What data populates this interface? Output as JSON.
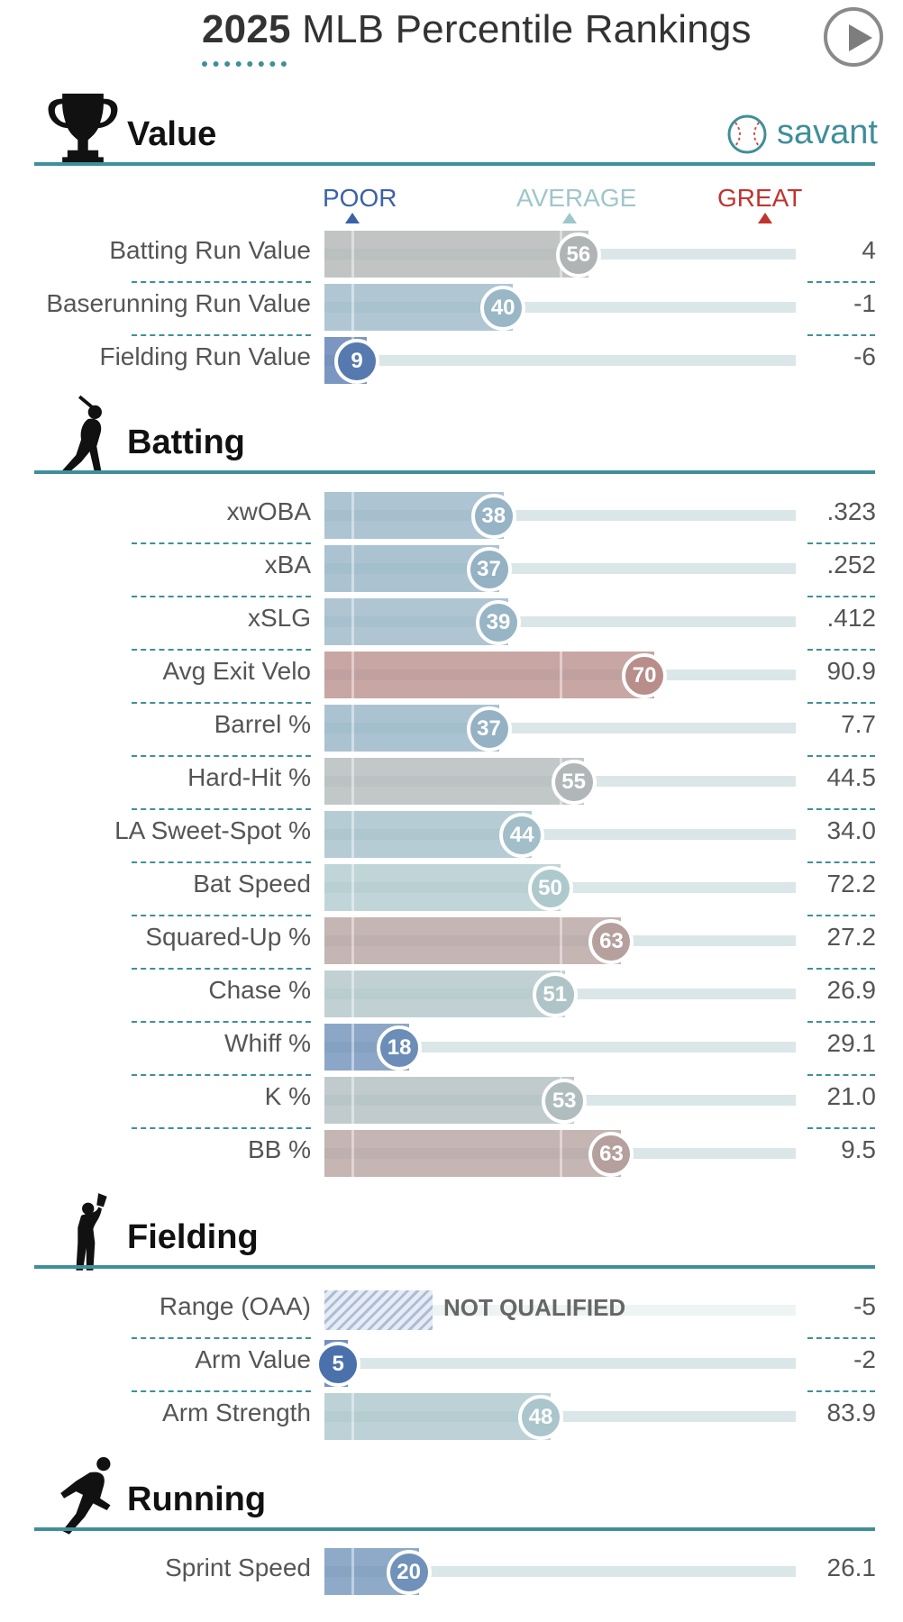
{
  "header": {
    "title_year": "2025",
    "title_rest": "MLB Percentile Rankings",
    "play_icon": "play-icon"
  },
  "brand": {
    "name": "savant",
    "icon": "baseball-icon",
    "color": "#3f8f9a"
  },
  "scale": {
    "poor": "POOR",
    "average": "AVERAGE",
    "great": "GREAT"
  },
  "chart_data": {
    "type": "bar",
    "title": "2025 MLB Percentile Rankings",
    "xlim": [
      0,
      100
    ],
    "value_label": "percentile",
    "sections": [
      {
        "name": "Value",
        "icon": "trophy-icon",
        "metrics": [
          {
            "name": "Batting Run Value",
            "percentile": 56,
            "stat": "4"
          },
          {
            "name": "Baserunning Run Value",
            "percentile": 40,
            "stat": "-1"
          },
          {
            "name": "Fielding Run Value",
            "percentile": 9,
            "stat": "-6"
          }
        ]
      },
      {
        "name": "Batting",
        "icon": "batter-icon",
        "metrics": [
          {
            "name": "xwOBA",
            "percentile": 38,
            "stat": ".323"
          },
          {
            "name": "xBA",
            "percentile": 37,
            "stat": ".252"
          },
          {
            "name": "xSLG",
            "percentile": 39,
            "stat": ".412"
          },
          {
            "name": "Avg Exit Velo",
            "percentile": 70,
            "stat": "90.9"
          },
          {
            "name": "Barrel %",
            "percentile": 37,
            "stat": "7.7"
          },
          {
            "name": "Hard-Hit %",
            "percentile": 55,
            "stat": "44.5"
          },
          {
            "name": "LA Sweet-Spot %",
            "percentile": 44,
            "stat": "34.0"
          },
          {
            "name": "Bat Speed",
            "percentile": 50,
            "stat": "72.2"
          },
          {
            "name": "Squared-Up %",
            "percentile": 63,
            "stat": "27.2"
          },
          {
            "name": "Chase %",
            "percentile": 51,
            "stat": "26.9"
          },
          {
            "name": "Whiff %",
            "percentile": 18,
            "stat": "29.1"
          },
          {
            "name": "K %",
            "percentile": 53,
            "stat": "21.0"
          },
          {
            "name": "BB %",
            "percentile": 63,
            "stat": "9.5"
          }
        ]
      },
      {
        "name": "Fielding",
        "icon": "fielder-icon",
        "metrics": [
          {
            "name": "Range (OAA)",
            "percentile": null,
            "stat": "-5",
            "note": "NOT QUALIFIED"
          },
          {
            "name": "Arm Value",
            "percentile": 5,
            "stat": "-2"
          },
          {
            "name": "Arm Strength",
            "percentile": 48,
            "stat": "83.9"
          }
        ]
      },
      {
        "name": "Running",
        "icon": "runner-icon",
        "metrics": [
          {
            "name": "Sprint Speed",
            "percentile": 20,
            "stat": "26.1"
          }
        ]
      }
    ]
  }
}
